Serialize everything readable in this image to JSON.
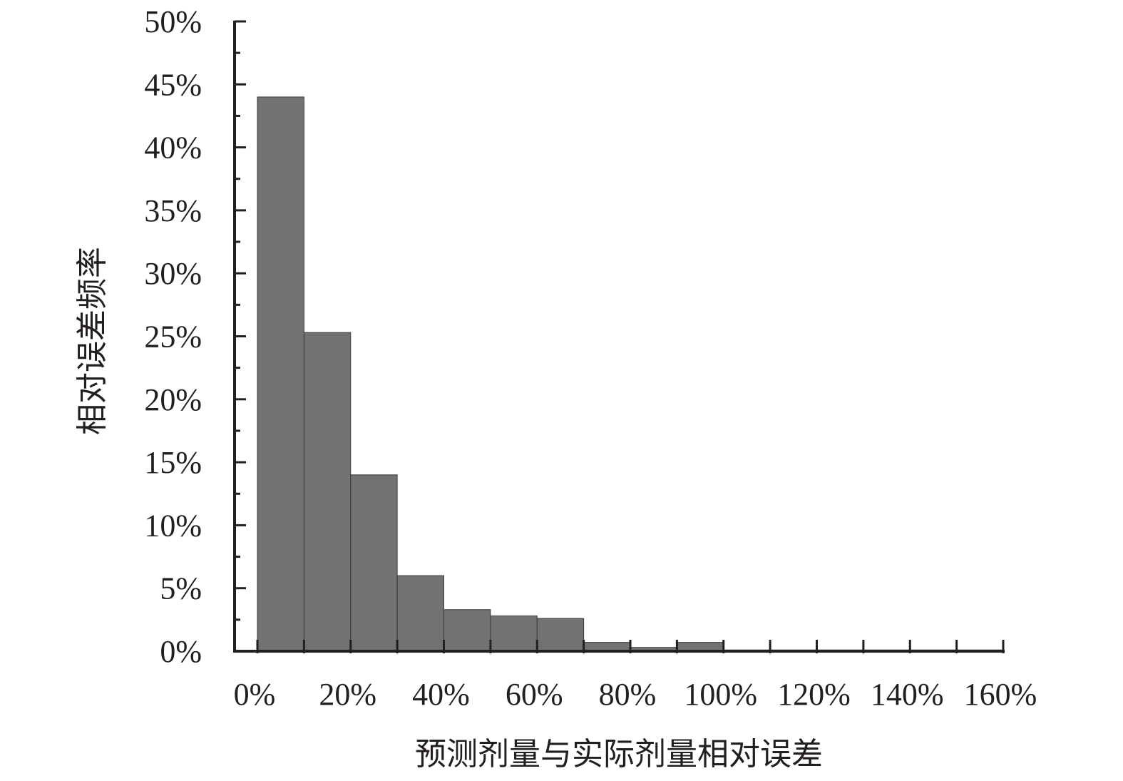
{
  "chart_data": {
    "type": "bar",
    "title": "",
    "xlabel": "预测剂量与实际剂量相对误差",
    "ylabel": "相对误差频率",
    "x_ticks": [
      "0%",
      "20%",
      "40%",
      "60%",
      "80%",
      "100%",
      "120%",
      "140%",
      "160%"
    ],
    "y_ticks": [
      "0%",
      "5%",
      "10%",
      "15%",
      "20%",
      "25%",
      "30%",
      "35%",
      "40%",
      "45%",
      "50%"
    ],
    "bin_edges": [
      0,
      10,
      20,
      30,
      40,
      50,
      60,
      70,
      80,
      90,
      100,
      110,
      120,
      130,
      140,
      150,
      160
    ],
    "values": [
      44.0,
      25.3,
      14.0,
      6.0,
      3.3,
      2.8,
      2.6,
      0.7,
      0.3,
      0.7,
      0.1,
      0.1,
      0.1,
      0.1,
      0.1,
      0.1
    ],
    "xlim": [
      0,
      160
    ],
    "ylim": [
      0,
      50
    ],
    "grid": false,
    "legend": "none",
    "colors": {
      "bar": "#737273",
      "bar_edge": "#3a3a3a",
      "axis": "#231f20"
    }
  }
}
